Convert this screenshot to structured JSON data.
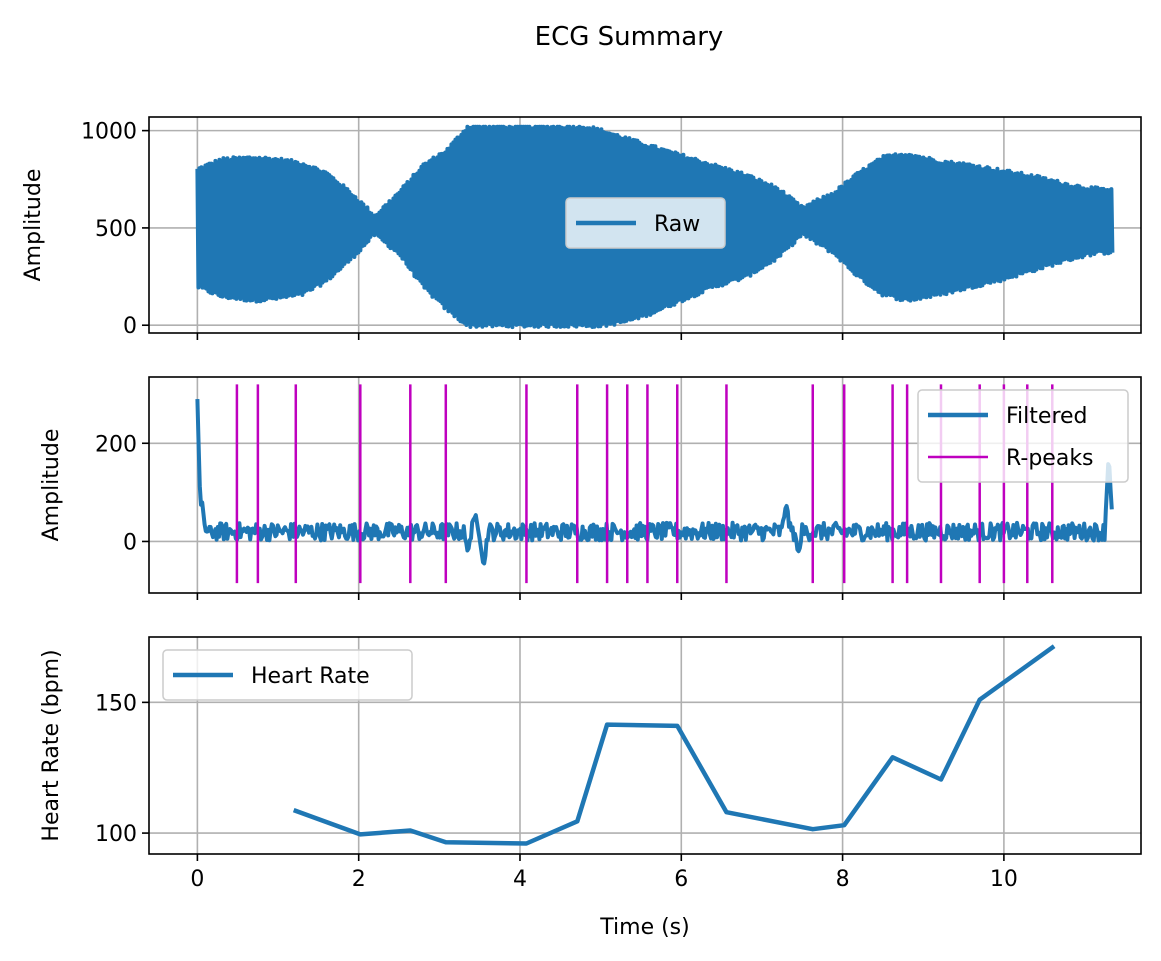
{
  "figure": {
    "title": "ECG Summary"
  },
  "chart_data": [
    {
      "type": "line",
      "panel": "raw",
      "ylabel": "Amplitude",
      "xlabel": "",
      "xlim": [
        -0.6,
        11.7
      ],
      "ylim": [
        -40,
        1070
      ],
      "xticks": [
        0,
        2,
        4,
        6,
        8,
        10
      ],
      "yticks": [
        0,
        500,
        1000
      ],
      "ytick_labels": [
        "0",
        "500",
        "1000"
      ],
      "xtick_labels_visible": false,
      "grid": true,
      "legend_position": "center",
      "series": [
        {
          "name": "Raw",
          "color": "#1f77b4",
          "style": "dense-oscillation",
          "x_range": [
            0,
            11.35
          ],
          "envelope": {
            "t": [
              0,
              0.3,
              0.7,
              1.0,
              1.3,
              1.6,
              1.9,
              2.2,
              2.5,
              2.8,
              3.1,
              3.35,
              3.6,
              4.0,
              4.4,
              4.8,
              5.0,
              5.3,
              5.6,
              6.0,
              6.4,
              6.8,
              7.2,
              7.5,
              7.9,
              8.2,
              8.5,
              8.8,
              9.2,
              9.6,
              10.0,
              10.4,
              10.8,
              11.1,
              11.35
            ],
            "upper": [
              800,
              850,
              860,
              850,
              830,
              780,
              680,
              560,
              680,
              820,
              900,
              1020,
              1020,
              1020,
              1020,
              1020,
              1000,
              960,
              920,
              870,
              820,
              770,
              700,
              600,
              680,
              780,
              860,
              880,
              840,
              820,
              790,
              760,
              720,
              700,
              690
            ],
            "lower": [
              200,
              150,
              130,
              140,
              160,
              230,
              340,
              470,
              370,
              200,
              80,
              0,
              0,
              0,
              0,
              0,
              0,
              20,
              60,
              130,
              200,
              250,
              350,
              470,
              370,
              250,
              160,
              130,
              160,
              200,
              240,
              290,
              340,
              370,
              380
            ]
          }
        }
      ]
    },
    {
      "type": "line",
      "panel": "filtered",
      "ylabel": "Amplitude",
      "xlabel": "",
      "xlim": [
        -0.6,
        11.7
      ],
      "ylim": [
        -105,
        335
      ],
      "xticks": [
        0,
        2,
        4,
        6,
        8,
        10
      ],
      "yticks": [
        0,
        200
      ],
      "ytick_labels": [
        "0",
        "200"
      ],
      "xtick_labels_visible": false,
      "grid": true,
      "legend_position": "upper right",
      "series": [
        {
          "name": "Filtered",
          "color": "#1f77b4",
          "style": "noisy-baseline",
          "x_range": [
            0,
            11.35
          ],
          "baseline": 20,
          "noise_amplitude": 18,
          "features": [
            {
              "x": 0.0,
              "y": 290
            },
            {
              "x": 0.06,
              "y": 80
            },
            {
              "x": 0.12,
              "y": 20
            },
            {
              "x": 3.35,
              "y": -20
            },
            {
              "x": 3.45,
              "y": 55
            },
            {
              "x": 3.55,
              "y": -55
            },
            {
              "x": 7.3,
              "y": 80
            },
            {
              "x": 7.45,
              "y": -25
            },
            {
              "x": 11.3,
              "y": 180
            }
          ]
        },
        {
          "name": "R-peaks",
          "color": "#bf00bf",
          "style": "vertical-lines",
          "y_range": [
            -85,
            320
          ],
          "x": [
            0.49,
            0.75,
            1.22,
            2.02,
            2.64,
            3.08,
            4.08,
            4.71,
            5.08,
            5.33,
            5.58,
            5.95,
            6.56,
            7.63,
            8.02,
            8.62,
            8.8,
            9.22,
            9.7,
            10.0,
            10.29,
            10.6
          ]
        }
      ]
    },
    {
      "type": "line",
      "panel": "heart-rate",
      "ylabel": "Heart Rate (bpm)",
      "xlabel": "Time (s)",
      "xlim": [
        -0.6,
        11.7
      ],
      "ylim": [
        92,
        175
      ],
      "xticks": [
        0,
        2,
        4,
        6,
        8,
        10
      ],
      "xtick_labels": [
        "0",
        "2",
        "4",
        "6",
        "8",
        "10"
      ],
      "yticks": [
        100,
        150
      ],
      "ytick_labels": [
        "100",
        "150"
      ],
      "grid": true,
      "legend_position": "upper left",
      "series": [
        {
          "name": "Heart Rate",
          "color": "#1f77b4",
          "x": [
            1.22,
            2.02,
            2.64,
            3.08,
            4.08,
            4.71,
            5.08,
            5.95,
            6.56,
            7.63,
            8.02,
            8.62,
            9.22,
            9.7,
            10.6
          ],
          "y": [
            108.5,
            99.5,
            101,
            96.5,
            96,
            104.5,
            141.5,
            141,
            108,
            101.5,
            103,
            129,
            120.5,
            151,
            171
          ]
        }
      ]
    }
  ]
}
